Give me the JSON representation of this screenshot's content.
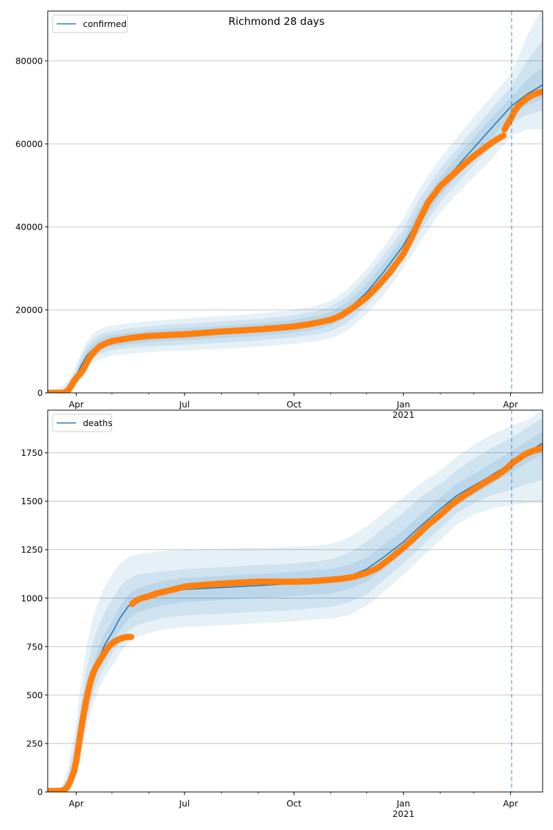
{
  "figure": {
    "title": "Richmond 28 days",
    "colors": {
      "model": "#1f77b4",
      "observed": "#ff7f0e",
      "band": "#1f77b4",
      "grid": "#b0b0b0"
    }
  },
  "chart_data": [
    {
      "type": "line",
      "legend": [
        "confirmed"
      ],
      "legend_position": "top-left",
      "grid": "horizontal",
      "x_ticks": [
        {
          "date": "2020-04-01",
          "label": "Apr"
        },
        {
          "date": "2020-07-01",
          "label": "Jul"
        },
        {
          "date": "2020-10-01",
          "label": "Oct"
        },
        {
          "date": "2021-01-01",
          "label": "Jan\n2021"
        },
        {
          "date": "2021-04-01",
          "label": "Apr"
        }
      ],
      "xlim": [
        "2020-03-08",
        "2021-04-28"
      ],
      "ylim": [
        0,
        92000
      ],
      "y_ticks": [
        0,
        20000,
        40000,
        60000,
        80000
      ],
      "forecast_start": "2021-04-02",
      "model": {
        "x": [
          "2020-03-08",
          "2020-03-20",
          "2020-03-25",
          "2020-03-31",
          "2020-04-05",
          "2020-04-10",
          "2020-04-15",
          "2020-04-20",
          "2020-04-25",
          "2020-05-01",
          "2020-05-15",
          "2020-06-01",
          "2020-06-15",
          "2020-07-01",
          "2020-08-01",
          "2020-09-01",
          "2020-10-01",
          "2020-10-20",
          "2020-11-01",
          "2020-11-15",
          "2020-12-01",
          "2020-12-15",
          "2021-01-01",
          "2021-01-15",
          "2021-02-01",
          "2021-02-15",
          "2021-03-01",
          "2021-03-15",
          "2021-04-02",
          "2021-04-15",
          "2021-04-28"
        ],
        "y": [
          0,
          100,
          1200,
          3500,
          6500,
          9000,
          10500,
          11500,
          12200,
          12700,
          13200,
          13700,
          14000,
          14200,
          14700,
          15200,
          16000,
          16900,
          17800,
          20000,
          24200,
          29000,
          35500,
          42800,
          49800,
          54500,
          59000,
          63500,
          69200,
          72000,
          74200
        ],
        "bands": [
          {
            "lower": [
              0,
              0,
              0,
              1500,
              4000,
              6000,
              7200,
              8000,
              8500,
              9000,
              9400,
              9800,
              10000,
              10200,
              10600,
              11100,
              11800,
              12500,
              13200,
              15000,
              19000,
              23500,
              30000,
              36500,
              43500,
              48000,
              52000,
              56000,
              62000,
              63500,
              63500
            ],
            "upper": [
              500,
              1500,
              3000,
              6000,
              9500,
              12500,
              14200,
              15200,
              15800,
              16200,
              16800,
              17300,
              17600,
              17900,
              18500,
              19100,
              20000,
              21000,
              22200,
              25000,
              29800,
              35000,
              42000,
              49500,
              56500,
              61500,
              66500,
              71000,
              77000,
              86000,
              93000
            ]
          },
          {
            "lower": [
              0,
              0,
              200,
              2300,
              4800,
              7000,
              8300,
              9200,
              9800,
              10300,
              10800,
              11200,
              11400,
              11600,
              12100,
              12600,
              13400,
              14100,
              14900,
              16900,
              21000,
              25600,
              32200,
              39000,
              46000,
              50500,
              54800,
              59000,
              65000,
              67000,
              68000
            ],
            "upper": [
              300,
              800,
              2200,
              5000,
              8500,
              11300,
              12900,
              13900,
              14500,
              14900,
              15500,
              16000,
              16400,
              16600,
              17200,
              17800,
              18700,
              19700,
              20800,
              23300,
              28000,
              33000,
              39500,
              47000,
              54000,
              58800,
              63500,
              68000,
              74000,
              80000,
              85000
            ]
          },
          {
            "lower": [
              0,
              40,
              500,
              2800,
              5500,
              7800,
              9200,
              10100,
              10700,
              11200,
              11700,
              12200,
              12500,
              12700,
              13200,
              13700,
              14500,
              15300,
              16200,
              18300,
              22500,
              27100,
              33600,
              40600,
              47600,
              52200,
              56600,
              61000,
              67000,
              69300,
              70800
            ],
            "upper": [
              200,
              300,
              1800,
              4300,
              7600,
              10200,
              11800,
              12800,
              13500,
              14000,
              14500,
              15000,
              15400,
              15600,
              16100,
              16700,
              17600,
              18600,
              19500,
              21800,
              26200,
              31000,
              37500,
              45000,
              52000,
              56800,
              61500,
              66000,
              71400,
              75500,
              78500
            ]
          }
        ]
      },
      "observed": {
        "segments": [
          {
            "x": [
              "2020-03-08",
              "2020-03-13",
              "2020-03-17",
              "2020-03-21",
              "2020-03-24",
              "2020-03-26",
              "2020-03-28",
              "2020-03-30",
              "2020-04-02",
              "2020-04-05",
              "2020-04-08",
              "2020-04-11",
              "2020-04-14",
              "2020-04-17",
              "2020-04-20",
              "2020-04-24",
              "2020-04-28",
              "2020-05-03",
              "2020-05-10",
              "2020-05-18",
              "2020-06-01",
              "2020-06-15",
              "2020-07-01",
              "2020-07-15",
              "2020-08-01",
              "2020-08-15",
              "2020-09-01",
              "2020-09-15",
              "2020-10-01",
              "2020-10-15",
              "2020-11-01",
              "2020-11-10",
              "2020-11-20",
              "2020-12-01",
              "2020-12-10",
              "2020-12-20",
              "2021-01-01",
              "2021-01-08",
              "2021-01-15",
              "2021-01-22",
              "2021-02-01",
              "2021-02-10",
              "2021-02-20",
              "2021-03-01",
              "2021-03-10",
              "2021-03-20",
              "2021-03-26"
            ],
            "y": [
              0,
              0,
              0,
              0,
              300,
              900,
              1800,
              2800,
              3900,
              4800,
              6200,
              8000,
              9200,
              10200,
              11000,
              11700,
              12200,
              12600,
              12900,
              13300,
              13700,
              13900,
              14100,
              14400,
              14800,
              15000,
              15300,
              15600,
              16000,
              16600,
              17600,
              18700,
              20600,
              23000,
              25600,
              28800,
              33500,
              37500,
              42000,
              46000,
              49800,
              52200,
              54800,
              57000,
              59000,
              61000,
              62000
            ]
          },
          {
            "x": [
              "2021-03-27",
              "2021-03-30",
              "2021-04-02",
              "2021-04-05",
              "2021-04-08",
              "2021-04-12",
              "2021-04-16",
              "2021-04-20",
              "2021-04-24",
              "2021-04-28"
            ],
            "y": [
              63500,
              65000,
              66500,
              68200,
              69300,
              70300,
              71200,
              71800,
              72300,
              72600
            ]
          }
        ]
      }
    },
    {
      "type": "line",
      "legend": [
        "deaths"
      ],
      "legend_position": "top-left",
      "grid": "horizontal",
      "x_ticks": [
        {
          "date": "2020-04-01",
          "label": "Apr"
        },
        {
          "date": "2020-07-01",
          "label": "Jul"
        },
        {
          "date": "2020-10-01",
          "label": "Oct"
        },
        {
          "date": "2021-01-01",
          "label": "Jan\n2021"
        },
        {
          "date": "2021-04-01",
          "label": "Apr"
        }
      ],
      "xlim": [
        "2020-03-08",
        "2021-04-28"
      ],
      "ylim": [
        0,
        1970
      ],
      "y_ticks": [
        0,
        250,
        500,
        750,
        1000,
        1250,
        1500,
        1750
      ],
      "forecast_start": "2021-04-02",
      "model": {
        "x": [
          "2020-03-08",
          "2020-03-20",
          "2020-03-25",
          "2020-03-31",
          "2020-04-05",
          "2020-04-10",
          "2020-04-15",
          "2020-04-20",
          "2020-04-25",
          "2020-05-01",
          "2020-05-08",
          "2020-05-15",
          "2020-05-22",
          "2020-06-01",
          "2020-06-15",
          "2020-07-01",
          "2020-08-01",
          "2020-09-01",
          "2020-10-01",
          "2020-10-20",
          "2020-11-01",
          "2020-11-15",
          "2020-12-01",
          "2020-12-15",
          "2021-01-01",
          "2021-01-15",
          "2021-02-01",
          "2021-02-15",
          "2021-03-01",
          "2021-03-15",
          "2021-04-02",
          "2021-04-15",
          "2021-04-28"
        ],
        "y": [
          0,
          5,
          40,
          150,
          320,
          480,
          600,
          690,
          760,
          820,
          900,
          960,
          990,
          1010,
          1030,
          1045,
          1055,
          1065,
          1075,
          1085,
          1090,
          1110,
          1150,
          1210,
          1290,
          1370,
          1460,
          1530,
          1580,
          1630,
          1700,
          1750,
          1800
        ],
        "bands": [
          {
            "lower": [
              0,
              0,
              10,
              80,
              200,
              330,
              450,
              530,
              590,
              650,
              720,
              770,
              800,
              820,
              840,
              850,
              860,
              870,
              880,
              890,
              895,
              910,
              960,
              1030,
              1120,
              1200,
              1300,
              1380,
              1430,
              1460,
              1480,
              1490,
              1490
            ],
            "upper": [
              10,
              30,
              120,
              330,
              560,
              760,
              900,
              990,
              1060,
              1120,
              1180,
              1210,
              1225,
              1235,
              1245,
              1250,
              1255,
              1260,
              1265,
              1270,
              1280,
              1310,
              1370,
              1440,
              1520,
              1590,
              1660,
              1730,
              1790,
              1840,
              1890,
              1920,
              1970
            ]
          },
          {
            "lower": [
              0,
              2,
              20,
              100,
              240,
              380,
              500,
              590,
              650,
              710,
              780,
              830,
              860,
              880,
              900,
              910,
              920,
              930,
              940,
              950,
              955,
              975,
              1020,
              1090,
              1180,
              1260,
              1360,
              1440,
              1490,
              1530,
              1560,
              1590,
              1610
            ],
            "upper": [
              6,
              20,
              80,
              260,
              460,
              640,
              770,
              860,
              930,
              990,
              1060,
              1100,
              1120,
              1130,
              1140,
              1150,
              1160,
              1170,
              1180,
              1190,
              1200,
              1230,
              1290,
              1360,
              1440,
              1520,
              1590,
              1660,
              1720,
              1770,
              1830,
              1880,
              1930
            ]
          },
          {
            "lower": [
              0,
              3,
              30,
              125,
              280,
              430,
              550,
              640,
              710,
              770,
              840,
              895,
              925,
              945,
              965,
              980,
              990,
              1000,
              1010,
              1020,
              1025,
              1045,
              1085,
              1150,
              1235,
              1315,
              1410,
              1485,
              1535,
              1585,
              1650,
              1700,
              1740
            ],
            "upper": [
              3,
              10,
              55,
              180,
              370,
              540,
              660,
              750,
              820,
              880,
              960,
              1020,
              1050,
              1070,
              1090,
              1105,
              1115,
              1125,
              1135,
              1145,
              1150,
              1170,
              1210,
              1275,
              1350,
              1430,
              1520,
              1590,
              1640,
              1690,
              1760,
              1810,
              1860
            ]
          }
        ]
      },
      "observed": {
        "segments": [
          {
            "x": [
              "2020-03-08",
              "2020-03-15",
              "2020-03-20",
              "2020-03-24",
              "2020-03-27",
              "2020-03-30",
              "2020-04-01",
              "2020-04-03",
              "2020-04-05",
              "2020-04-07",
              "2020-04-09",
              "2020-04-11",
              "2020-04-13",
              "2020-04-15",
              "2020-04-18",
              "2020-04-21",
              "2020-04-24",
              "2020-04-27",
              "2020-04-30",
              "2020-05-03",
              "2020-05-06",
              "2020-05-10",
              "2020-05-14",
              "2020-05-17"
            ],
            "y": [
              5,
              5,
              5,
              20,
              55,
              105,
              160,
              240,
              320,
              395,
              460,
              520,
              570,
              610,
              650,
              680,
              710,
              740,
              760,
              775,
              785,
              795,
              800,
              800
            ]
          },
          {
            "x": [
              "2020-05-18",
              "2020-05-22",
              "2020-05-26",
              "2020-06-01",
              "2020-06-08",
              "2020-06-15",
              "2020-06-22",
              "2020-07-01",
              "2020-07-10",
              "2020-07-20",
              "2020-08-01",
              "2020-08-15",
              "2020-09-01",
              "2020-09-15",
              "2020-10-01",
              "2020-10-15",
              "2020-11-01",
              "2020-11-10",
              "2020-11-20",
              "2020-12-01",
              "2020-12-10",
              "2020-12-20",
              "2021-01-01",
              "2021-01-10",
              "2021-01-20",
              "2021-02-01",
              "2021-02-10",
              "2021-02-20",
              "2021-03-01",
              "2021-03-10",
              "2021-03-20",
              "2021-03-28",
              "2021-04-03",
              "2021-04-08",
              "2021-04-14",
              "2021-04-20",
              "2021-04-28"
            ],
            "y": [
              970,
              990,
              1000,
              1010,
              1025,
              1035,
              1045,
              1060,
              1065,
              1070,
              1075,
              1080,
              1085,
              1085,
              1085,
              1087,
              1095,
              1100,
              1110,
              1130,
              1155,
              1200,
              1260,
              1310,
              1370,
              1430,
              1480,
              1525,
              1560,
              1595,
              1630,
              1665,
              1700,
              1720,
              1745,
              1760,
              1775
            ]
          }
        ]
      }
    }
  ]
}
